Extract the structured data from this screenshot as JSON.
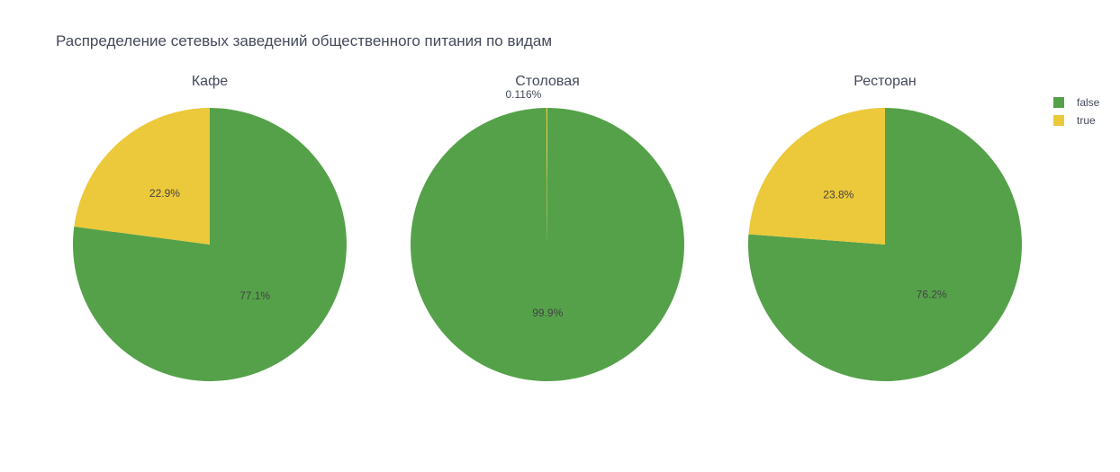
{
  "chart_data": {
    "type": "pie",
    "title": "Распределение сетевых заведений общественного питания по видам",
    "legend": {
      "position": "top-right",
      "entries": [
        {
          "name": "false",
          "color": "#55a14a"
        },
        {
          "name": "true",
          "color": "#ecc93a"
        }
      ]
    },
    "charts": [
      {
        "title": "Кафе",
        "slices": [
          {
            "label": "false",
            "percent": 77.1,
            "percent_text": "77.1%",
            "color": "#55a14a"
          },
          {
            "label": "true",
            "percent": 22.9,
            "percent_text": "22.9%",
            "color": "#ecc93a"
          }
        ]
      },
      {
        "title": "Столовая",
        "slices": [
          {
            "label": "false",
            "percent": 99.9,
            "percent_text": "99.9%",
            "color": "#55a14a"
          },
          {
            "label": "true",
            "percent": 0.116,
            "percent_text": "0.116%",
            "color": "#ecc93a"
          }
        ]
      },
      {
        "title": "Ресторан",
        "slices": [
          {
            "label": "false",
            "percent": 76.2,
            "percent_text": "76.2%",
            "color": "#55a14a"
          },
          {
            "label": "true",
            "percent": 23.8,
            "percent_text": "23.8%",
            "color": "#ecc93a"
          }
        ]
      }
    ]
  }
}
